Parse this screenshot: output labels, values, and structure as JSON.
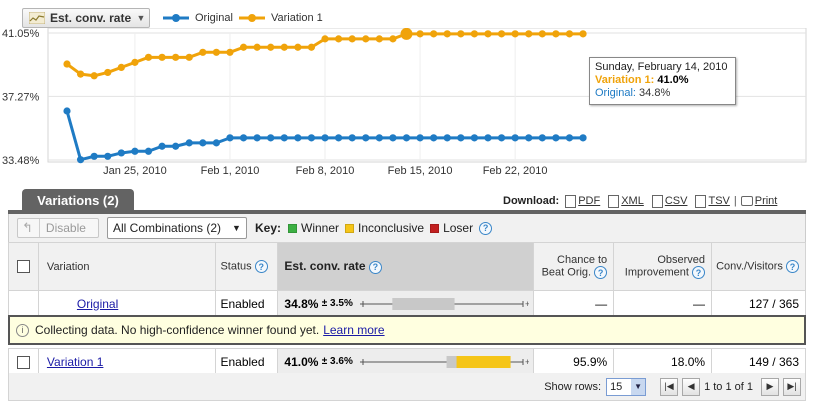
{
  "metric_select": {
    "label": "Est. conv. rate"
  },
  "legend": [
    {
      "name": "Original",
      "color": "#1f7bc4"
    },
    {
      "name": "Variation 1",
      "color": "#f0a30a"
    }
  ],
  "chart_data": {
    "type": "line",
    "y_ticks": [
      "41.05%",
      "37.27%",
      "33.48%"
    ],
    "y_tick_values": [
      41.05,
      37.27,
      33.48
    ],
    "ylim": [
      33.48,
      41.05
    ],
    "x_tick_labels": [
      "Jan 25, 2010",
      "Feb 1, 2010",
      "Feb 8, 2010",
      "Feb 15, 2010",
      "Feb 22, 2010"
    ],
    "x": [
      "2010-01-20",
      "2010-01-21",
      "2010-01-22",
      "2010-01-23",
      "2010-01-24",
      "2010-01-25",
      "2010-01-26",
      "2010-01-27",
      "2010-01-28",
      "2010-01-29",
      "2010-01-30",
      "2010-01-31",
      "2010-02-01",
      "2010-02-02",
      "2010-02-03",
      "2010-02-04",
      "2010-02-05",
      "2010-02-06",
      "2010-02-07",
      "2010-02-08",
      "2010-02-09",
      "2010-02-10",
      "2010-02-11",
      "2010-02-12",
      "2010-02-13",
      "2010-02-14",
      "2010-02-15",
      "2010-02-16",
      "2010-02-17",
      "2010-02-18",
      "2010-02-19",
      "2010-02-20",
      "2010-02-21",
      "2010-02-22",
      "2010-02-23",
      "2010-02-24",
      "2010-02-25",
      "2010-02-26",
      "2010-02-27"
    ],
    "series": [
      {
        "name": "Original",
        "color": "#1f7bc4",
        "values": [
          36.4,
          33.5,
          33.7,
          33.7,
          33.9,
          34.0,
          34.0,
          34.3,
          34.3,
          34.5,
          34.5,
          34.5,
          34.8,
          34.8,
          34.8,
          34.8,
          34.8,
          34.8,
          34.8,
          34.8,
          34.8,
          34.8,
          34.8,
          34.8,
          34.8,
          34.8,
          34.8,
          34.8,
          34.8,
          34.8,
          34.8,
          34.8,
          34.8,
          34.8,
          34.8,
          34.8,
          34.8,
          34.8,
          34.8
        ]
      },
      {
        "name": "Variation 1",
        "color": "#f0a30a",
        "values": [
          39.2,
          38.6,
          38.5,
          38.7,
          39.0,
          39.3,
          39.6,
          39.6,
          39.6,
          39.6,
          39.9,
          39.9,
          39.9,
          40.2,
          40.2,
          40.2,
          40.2,
          40.2,
          40.2,
          40.7,
          40.7,
          40.7,
          40.7,
          40.7,
          40.7,
          41.0,
          41.0,
          41.0,
          41.0,
          41.0,
          41.0,
          41.0,
          41.0,
          41.0,
          41.0,
          41.0,
          41.0,
          41.0,
          41.0
        ]
      }
    ],
    "highlight_index": 25
  },
  "tooltip": {
    "date": "Sunday, February 14, 2010",
    "v1_label": "Variation 1",
    "v1_value": "41.0%",
    "orig_label": "Original",
    "orig_value": "34.8%"
  },
  "tab": {
    "label": "Variations (2)"
  },
  "download": {
    "label": "Download:",
    "items": [
      "PDF",
      "XML",
      "CSV",
      "TSV"
    ],
    "print": "Print"
  },
  "toolbar": {
    "disable_label": "Disable",
    "combo_label": "All Combinations (2)",
    "key_label": "Key:",
    "key_items": [
      {
        "name": "Winner",
        "color": "#3cb043"
      },
      {
        "name": "Inconclusive",
        "color": "#f5c518"
      },
      {
        "name": "Loser",
        "color": "#c21f1f"
      }
    ]
  },
  "table": {
    "headers": {
      "variation": "Variation",
      "status": "Status",
      "rate": "Est. conv. rate",
      "beat_line1": "Chance to",
      "beat_line2": "Beat Orig.",
      "obs_line1": "Observed",
      "obs_line2": "Improvement",
      "conv": "Conv./Visitors"
    },
    "rows": [
      {
        "name": "Original",
        "status": "Enabled",
        "rate": "34.8%",
        "pm": "± 3.5%",
        "range": [
          31.3,
          38.3
        ],
        "beat": "—",
        "obs": "—",
        "conv": "127 / 365"
      },
      {
        "name": "Variation 1",
        "status": "Enabled",
        "rate": "41.0%",
        "pm": "± 3.6%",
        "range": [
          37.4,
          44.6
        ],
        "beat": "95.9%",
        "obs": "18.0%",
        "conv": "149 / 363"
      }
    ]
  },
  "message": {
    "text": "Collecting data. No high-confidence winner found yet.",
    "link": "Learn more"
  },
  "footer": {
    "show_rows_label": "Show rows:",
    "rows_value": "15",
    "page_info": "1 to 1 of 1"
  }
}
